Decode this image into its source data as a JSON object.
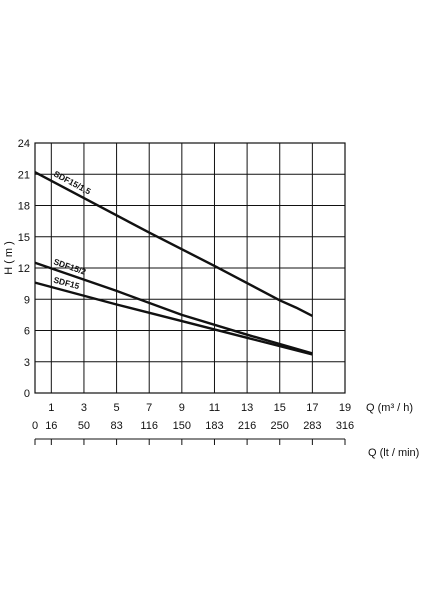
{
  "chart_data": {
    "type": "line",
    "xlabel": "Q (m³ / h)",
    "x2label": "Q (lt / min)",
    "ylabel": "H ( m )",
    "xlim": [
      0,
      19
    ],
    "ylim": [
      0,
      24
    ],
    "xticks": [
      0,
      1,
      3,
      5,
      7,
      9,
      11,
      13,
      15,
      17,
      19
    ],
    "xtick_labels": [
      "",
      "1",
      "3",
      "5",
      "7",
      "9",
      "11",
      "13",
      "15",
      "17",
      "19"
    ],
    "x2_ticks": [
      0,
      1,
      3,
      5,
      7,
      9,
      11,
      13,
      15,
      17,
      19
    ],
    "x2_labels": [
      "0",
      "16",
      "50",
      "83",
      "116",
      "150",
      "183",
      "216",
      "250",
      "283",
      "316"
    ],
    "yticks": [
      0,
      3,
      6,
      9,
      12,
      15,
      18,
      21,
      24
    ],
    "ytick_labels": [
      "0",
      "3",
      "6",
      "9",
      "12",
      "15",
      "18",
      "21",
      "24"
    ],
    "grid": true,
    "line_color": "#111111",
    "series": [
      {
        "name": "SDF15/1,5",
        "x": [
          0,
          7,
          11,
          15,
          16,
          17
        ],
        "y": [
          21.2,
          15.4,
          12.2,
          8.9,
          8.2,
          7.4
        ]
      },
      {
        "name": "SDF15/2",
        "x": [
          0,
          5,
          9,
          13,
          17
        ],
        "y": [
          12.5,
          9.8,
          7.5,
          5.6,
          3.8
        ]
      },
      {
        "name": "SDF15",
        "x": [
          0,
          5,
          9,
          13,
          17
        ],
        "y": [
          10.6,
          8.5,
          6.9,
          5.3,
          3.7
        ]
      }
    ]
  }
}
